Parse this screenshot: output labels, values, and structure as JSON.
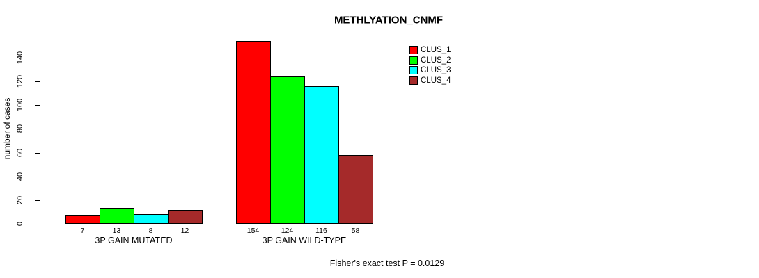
{
  "chart_data": {
    "type": "bar",
    "title": "METHLYATION_CNMF",
    "ylabel": "number of cases",
    "xlabel": "",
    "ylim": [
      0,
      155
    ],
    "yticks": [
      0,
      20,
      40,
      60,
      80,
      100,
      120,
      140
    ],
    "grid": false,
    "legend_position": "top-right",
    "categories": [
      "3P GAIN MUTATED",
      "3P GAIN WILD-TYPE"
    ],
    "series": [
      {
        "name": "CLUS_1",
        "color": "#ff0000",
        "values": [
          7,
          154
        ]
      },
      {
        "name": "CLUS_2",
        "color": "#00ff00",
        "values": [
          13,
          124
        ]
      },
      {
        "name": "CLUS_3",
        "color": "#00ffff",
        "values": [
          8,
          116
        ]
      },
      {
        "name": "CLUS_4",
        "color": "#a52a2a",
        "values": [
          12,
          58
        ]
      }
    ],
    "show_bar_value_labels": true,
    "annotation": "Fisher's exact test P = 0.0129"
  }
}
